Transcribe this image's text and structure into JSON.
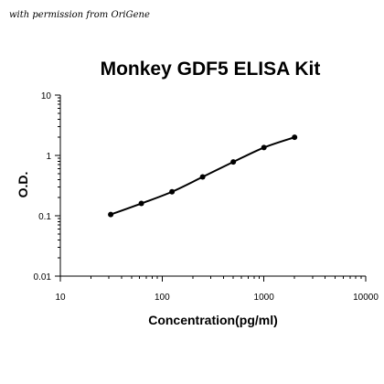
{
  "credit": "with permission from OriGene",
  "chart_data": {
    "type": "line",
    "title": "Monkey GDF5 ELISA Kit",
    "xlabel": "Concentration(pg/ml)",
    "ylabel": "O.D.",
    "x_scale": "log",
    "y_scale": "log",
    "xlim": [
      10,
      10000
    ],
    "ylim": [
      0.01,
      10
    ],
    "x_ticks": [
      10,
      100,
      1000,
      10000
    ],
    "x_tick_labels": [
      "10",
      "100",
      "1000",
      "10000"
    ],
    "y_ticks": [
      0.01,
      0.1,
      1,
      10
    ],
    "y_tick_labels": [
      "0.01",
      "0.1",
      "1",
      "10"
    ],
    "grid": false,
    "line_color": "#000000",
    "series": [
      {
        "x": [
          31.25,
          62.5,
          125,
          250,
          500,
          1000,
          2000
        ],
        "y": [
          0.105,
          0.16,
          0.25,
          0.44,
          0.78,
          1.35,
          2.0
        ]
      }
    ]
  }
}
